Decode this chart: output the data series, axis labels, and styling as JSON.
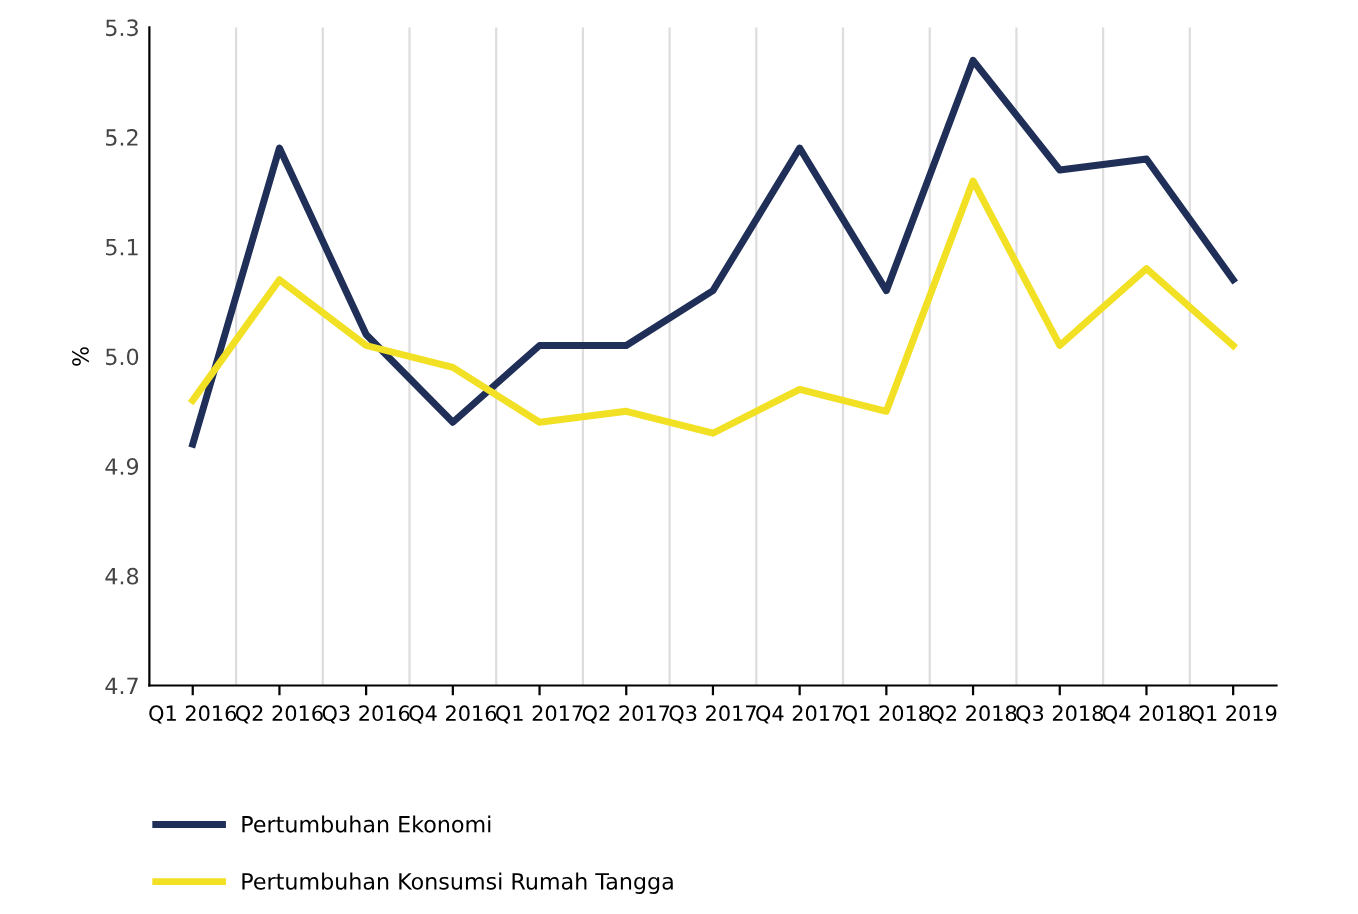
{
  "chart_data": {
    "type": "line",
    "ylabel": "%",
    "categories": [
      "Q1 2016",
      "Q2 2016",
      "Q3 2016",
      "Q4 2016",
      "Q1 2017",
      "Q2 2017",
      "Q3 2017",
      "Q4 2017",
      "Q1 2018",
      "Q2 2018",
      "Q3 2018",
      "Q4 2018",
      "Q1 2019"
    ],
    "series": [
      {
        "name": "Pertumbuhan Ekonomi",
        "color": "#1f2f57",
        "values": [
          4.92,
          5.19,
          5.02,
          4.94,
          5.01,
          5.01,
          5.06,
          5.19,
          5.06,
          5.27,
          5.17,
          5.18,
          5.07
        ]
      },
      {
        "name": "Pertumbuhan Konsumsi Rumah Tangga",
        "color": "#f2e024",
        "values": [
          4.96,
          5.07,
          5.01,
          4.99,
          4.94,
          4.95,
          4.93,
          4.97,
          4.95,
          5.16,
          5.01,
          5.08,
          5.01
        ]
      }
    ],
    "ylim": [
      4.7,
      5.3
    ],
    "yticks": [
      4.7,
      4.8,
      4.9,
      {
        "value": 5.0,
        "label": "5.0"
      },
      5.1,
      5.2,
      5.3
    ],
    "grid": "x",
    "legend": "bottom",
    "marker": "none",
    "line_style": "solid"
  }
}
